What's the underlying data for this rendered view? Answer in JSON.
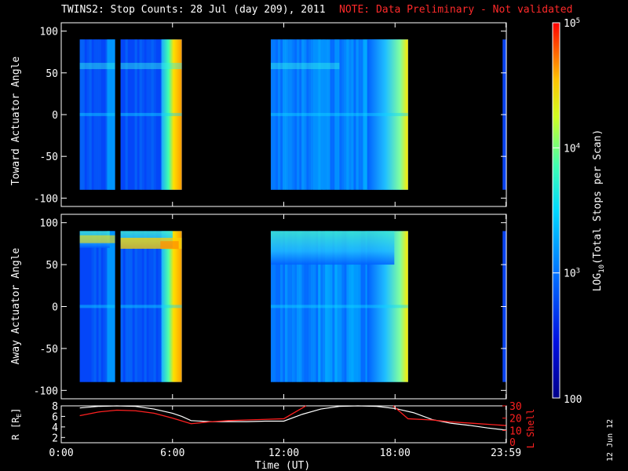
{
  "title": "TWINS2: Stop Counts: 28 Jul (day 209), 2011",
  "note": "NOTE: Data Preliminary - Not validated",
  "side_date": "12 Jun 12",
  "colors": {
    "background": "#000000",
    "axes": "#ffffff",
    "note": "#ff2a2a",
    "lshell": "#ff2020",
    "r_line": "#ffffff"
  },
  "colorbar": {
    "label": "LOG10(Total Stops per Scan)",
    "label_main": "LOG",
    "label_sub": "10",
    "label_rest": "(Total Stops per Scan)",
    "ticks": [
      {
        "value": 100,
        "text": "100"
      },
      {
        "value": 1000,
        "text": "10",
        "exp": "3"
      },
      {
        "value": 10000,
        "text": "10",
        "exp": "4"
      },
      {
        "value": 100000,
        "text": "10",
        "exp": "5"
      }
    ],
    "range": [
      100,
      100000
    ],
    "scale": "log"
  },
  "chart_data": [
    {
      "type": "heatmap",
      "ylabel": "Toward Actuator Angle",
      "ylim": [
        -110,
        110
      ],
      "yticks": [
        -100,
        -50,
        0,
        50,
        100
      ],
      "xlim": [
        0,
        24
      ],
      "xticks": [
        0,
        6,
        12,
        18,
        23.98
      ],
      "data_hours": [
        [
          1.0,
          2.9
        ],
        [
          3.2,
          6.5
        ],
        [
          11.3,
          18.7
        ],
        [
          23.8,
          24.0
        ]
      ],
      "angle_range": [
        -90,
        90
      ]
    },
    {
      "type": "heatmap",
      "ylabel": "Away Actuator Angle",
      "ylim": [
        -110,
        110
      ],
      "yticks": [
        -100,
        -50,
        0,
        50,
        100
      ],
      "xlim": [
        0,
        24
      ],
      "xticks": [
        0,
        6,
        12,
        18,
        23.98
      ],
      "data_hours": [
        [
          1.0,
          2.9
        ],
        [
          3.2,
          6.5
        ],
        [
          11.3,
          18.7
        ],
        [
          23.8,
          24.0
        ]
      ],
      "angle_range": [
        -90,
        90
      ]
    },
    {
      "type": "line",
      "xlabel": "Time (UT)",
      "xlim": [
        0,
        24
      ],
      "xticks": [
        "0:00",
        "6:00",
        "12:00",
        "18:00",
        "23:59"
      ],
      "left_axis": {
        "label": "R [RE]",
        "label_main": "R [R",
        "label_sub": "E",
        "label_end": "]",
        "ylim": [
          1,
          8
        ],
        "ticks": [
          2,
          4,
          6,
          8
        ]
      },
      "right_axis": {
        "label": "L Shell",
        "ylim": [
          0,
          30
        ],
        "ticks": [
          10,
          20,
          30
        ],
        "tick_labels": [
          "10",
          "20",
          "30"
        ],
        "bottom_tick_label": "0"
      },
      "series": [
        {
          "name": "R [RE]",
          "axis": "left",
          "x": [
            1.0,
            2.0,
            3.0,
            4.0,
            5.0,
            6.0,
            6.5,
            7.0,
            8.0,
            9.0,
            10.0,
            11.0,
            12.0,
            13.0,
            14.0,
            15.0,
            16.0,
            17.0,
            18.0,
            19.0,
            20.0,
            21.0,
            22.0,
            23.0,
            23.98
          ],
          "y": [
            7.6,
            7.9,
            8.0,
            7.9,
            7.4,
            6.6,
            6.0,
            5.2,
            5.0,
            5.0,
            5.0,
            5.1,
            5.1,
            6.4,
            7.4,
            7.9,
            8.0,
            7.9,
            7.5,
            6.7,
            5.4,
            4.7,
            4.3,
            3.8,
            3.4
          ]
        },
        {
          "name": "L Shell",
          "axis": "right",
          "segments": [
            {
              "x": [
                1.0,
                2.0,
                3.0,
                4.0,
                5.0,
                6.0,
                7.0,
                8.0,
                9.0,
                10.0,
                11.0,
                12.0,
                13.2
              ],
              "y": [
                22.0,
                25.0,
                26.5,
                26.0,
                24.0,
                20.0,
                15.5,
                17.0,
                18.0,
                18.5,
                19.0,
                19.5,
                30.0
              ]
            },
            {
              "x": [
                17.9,
                18.7,
                20.0,
                21.0,
                22.0,
                23.0,
                23.98
              ],
              "y": [
                30.0,
                19.5,
                18.5,
                17.0,
                16.0,
                15.0,
                14.0
              ]
            }
          ]
        }
      ]
    }
  ]
}
